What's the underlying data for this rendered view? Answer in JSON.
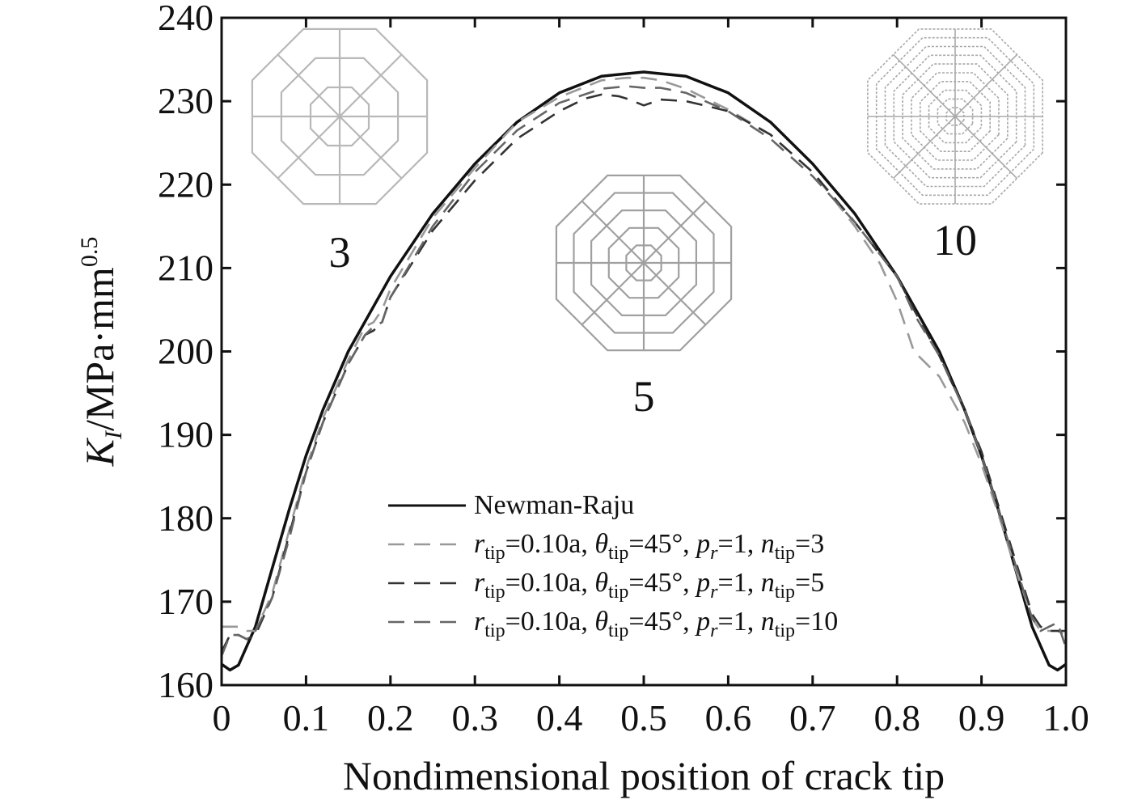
{
  "chart_data": {
    "type": "line",
    "title": "",
    "xlabel": "Nondimensional position of crack tip",
    "ylabel": {
      "main": "K",
      "main_sub": "I",
      "unit": "/MPa·mm",
      "unit_sup": "0.5"
    },
    "xlim": [
      0,
      1.0
    ],
    "ylim": [
      160,
      240
    ],
    "xticks": [
      "0",
      "0.1",
      "0.2",
      "0.3",
      "0.4",
      "0.5",
      "0.6",
      "0.7",
      "0.8",
      "0.9",
      "1.0"
    ],
    "yticks": [
      "160",
      "170",
      "180",
      "190",
      "200",
      "210",
      "220",
      "230",
      "240"
    ],
    "grid": false,
    "legend_position": "bottom-center",
    "series": [
      {
        "name": "Newman-Raju",
        "legend": {
          "base": "",
          "a_text": "Newman-Raju"
        },
        "color": "#111111",
        "style": "solid",
        "x": [
          0,
          0.01,
          0.02,
          0.04,
          0.06,
          0.08,
          0.1,
          0.12,
          0.15,
          0.2,
          0.25,
          0.3,
          0.35,
          0.4,
          0.45,
          0.5,
          0.55,
          0.6,
          0.65,
          0.7,
          0.75,
          0.8,
          0.85,
          0.88,
          0.9,
          0.92,
          0.94,
          0.96,
          0.98,
          0.99,
          1.0
        ],
        "y": [
          162.5,
          161.8,
          162.4,
          167,
          174,
          181,
          187.5,
          193,
          200,
          209,
          216.5,
          222.5,
          227.5,
          231,
          233,
          233.5,
          233,
          231,
          227.5,
          222.5,
          216.5,
          209,
          200,
          193,
          187.5,
          181,
          174,
          167,
          162.4,
          161.8,
          162.5
        ]
      },
      {
        "name": "n_tip=3",
        "legend": {
          "r": "r",
          "tip": "tip",
          "a_text": "=0.10a, ",
          "theta": "θ",
          "theta_text": "=45°, ",
          "p": "p",
          "p_sub": "r",
          "p_text": "=1, ",
          "n": "n",
          "n_text": "=3"
        },
        "color": "#999999",
        "style": "dashed",
        "x": [
          0,
          0.01,
          0.02,
          0.03,
          0.04,
          0.06,
          0.08,
          0.1,
          0.12,
          0.15,
          0.17,
          0.18,
          0.19,
          0.2,
          0.25,
          0.3,
          0.35,
          0.4,
          0.45,
          0.48,
          0.5,
          0.52,
          0.55,
          0.6,
          0.65,
          0.7,
          0.75,
          0.78,
          0.8,
          0.82,
          0.85,
          0.88,
          0.9,
          0.92,
          0.94,
          0.96,
          0.97,
          0.98,
          0.99,
          1.0
        ],
        "y": [
          167,
          167,
          167,
          166.5,
          166.5,
          171,
          178.5,
          186,
          192,
          199,
          203,
          203.5,
          205,
          207.5,
          216,
          222,
          227.5,
          230.5,
          232.5,
          232.8,
          232.8,
          232.5,
          231.5,
          229,
          226,
          221.5,
          215,
          210.5,
          206,
          200,
          197,
          191.5,
          186.5,
          180.5,
          174,
          168,
          166.5,
          166.5,
          166.5,
          166
        ]
      },
      {
        "name": "n_tip=5",
        "legend": {
          "r": "r",
          "tip": "tip",
          "a_text": "=0.10a, ",
          "theta": "θ",
          "theta_text": "=45°, ",
          "p": "p",
          "p_sub": "r",
          "p_text": "=1, ",
          "n": "n",
          "n_text": "=5"
        },
        "color": "#333333",
        "style": "dashed",
        "x": [
          0,
          0.01,
          0.02,
          0.03,
          0.04,
          0.06,
          0.08,
          0.1,
          0.12,
          0.15,
          0.17,
          0.18,
          0.19,
          0.2,
          0.25,
          0.3,
          0.35,
          0.4,
          0.43,
          0.45,
          0.47,
          0.48,
          0.5,
          0.52,
          0.55,
          0.58,
          0.6,
          0.65,
          0.7,
          0.75,
          0.8,
          0.82,
          0.85,
          0.88,
          0.9,
          0.92,
          0.94,
          0.96,
          0.97,
          0.98,
          0.99,
          1.0
        ],
        "y": [
          164,
          166,
          166,
          165.5,
          166,
          170.5,
          178,
          185.5,
          191.5,
          198.5,
          202,
          202.5,
          203.5,
          206.5,
          214.5,
          220.5,
          225.5,
          228.8,
          230.3,
          230.8,
          230.6,
          230.3,
          229.5,
          230.2,
          230,
          229.3,
          228.8,
          226,
          221.5,
          215.5,
          209,
          205,
          199.5,
          193,
          188,
          181.5,
          175,
          168.5,
          167,
          166.5,
          166.5,
          166.5
        ]
      },
      {
        "name": "n_tip=10",
        "legend": {
          "r": "r",
          "tip": "tip",
          "a_text": "=0.10a, ",
          "theta": "θ",
          "theta_text": "=45°, ",
          "p": "p",
          "p_sub": "r",
          "p_text": "=1, ",
          "n": "n",
          "n_text": "=10"
        },
        "color": "#666666",
        "style": "dashed",
        "x": [
          0,
          0.01,
          0.02,
          0.03,
          0.04,
          0.06,
          0.08,
          0.1,
          0.12,
          0.15,
          0.17,
          0.18,
          0.19,
          0.2,
          0.25,
          0.3,
          0.35,
          0.4,
          0.45,
          0.48,
          0.5,
          0.52,
          0.55,
          0.6,
          0.65,
          0.7,
          0.75,
          0.8,
          0.82,
          0.85,
          0.88,
          0.9,
          0.92,
          0.94,
          0.96,
          0.97,
          0.98,
          0.99,
          1.0
        ],
        "y": [
          163.5,
          166,
          166,
          165.5,
          166.5,
          170.5,
          177.5,
          185.5,
          191.5,
          198.5,
          202,
          203,
          203.5,
          206.5,
          215,
          221.5,
          226.5,
          229.8,
          231.5,
          231.8,
          231.6,
          231.6,
          231,
          228.8,
          225.5,
          221,
          215.5,
          209,
          204.5,
          199.5,
          193,
          187.5,
          181,
          174.5,
          168,
          166.5,
          167,
          167.5,
          164.5
        ]
      }
    ],
    "insets": [
      {
        "label": "3",
        "rings": 3
      },
      {
        "label": "5",
        "rings": 5
      },
      {
        "label": "10",
        "rings": 10
      }
    ]
  }
}
